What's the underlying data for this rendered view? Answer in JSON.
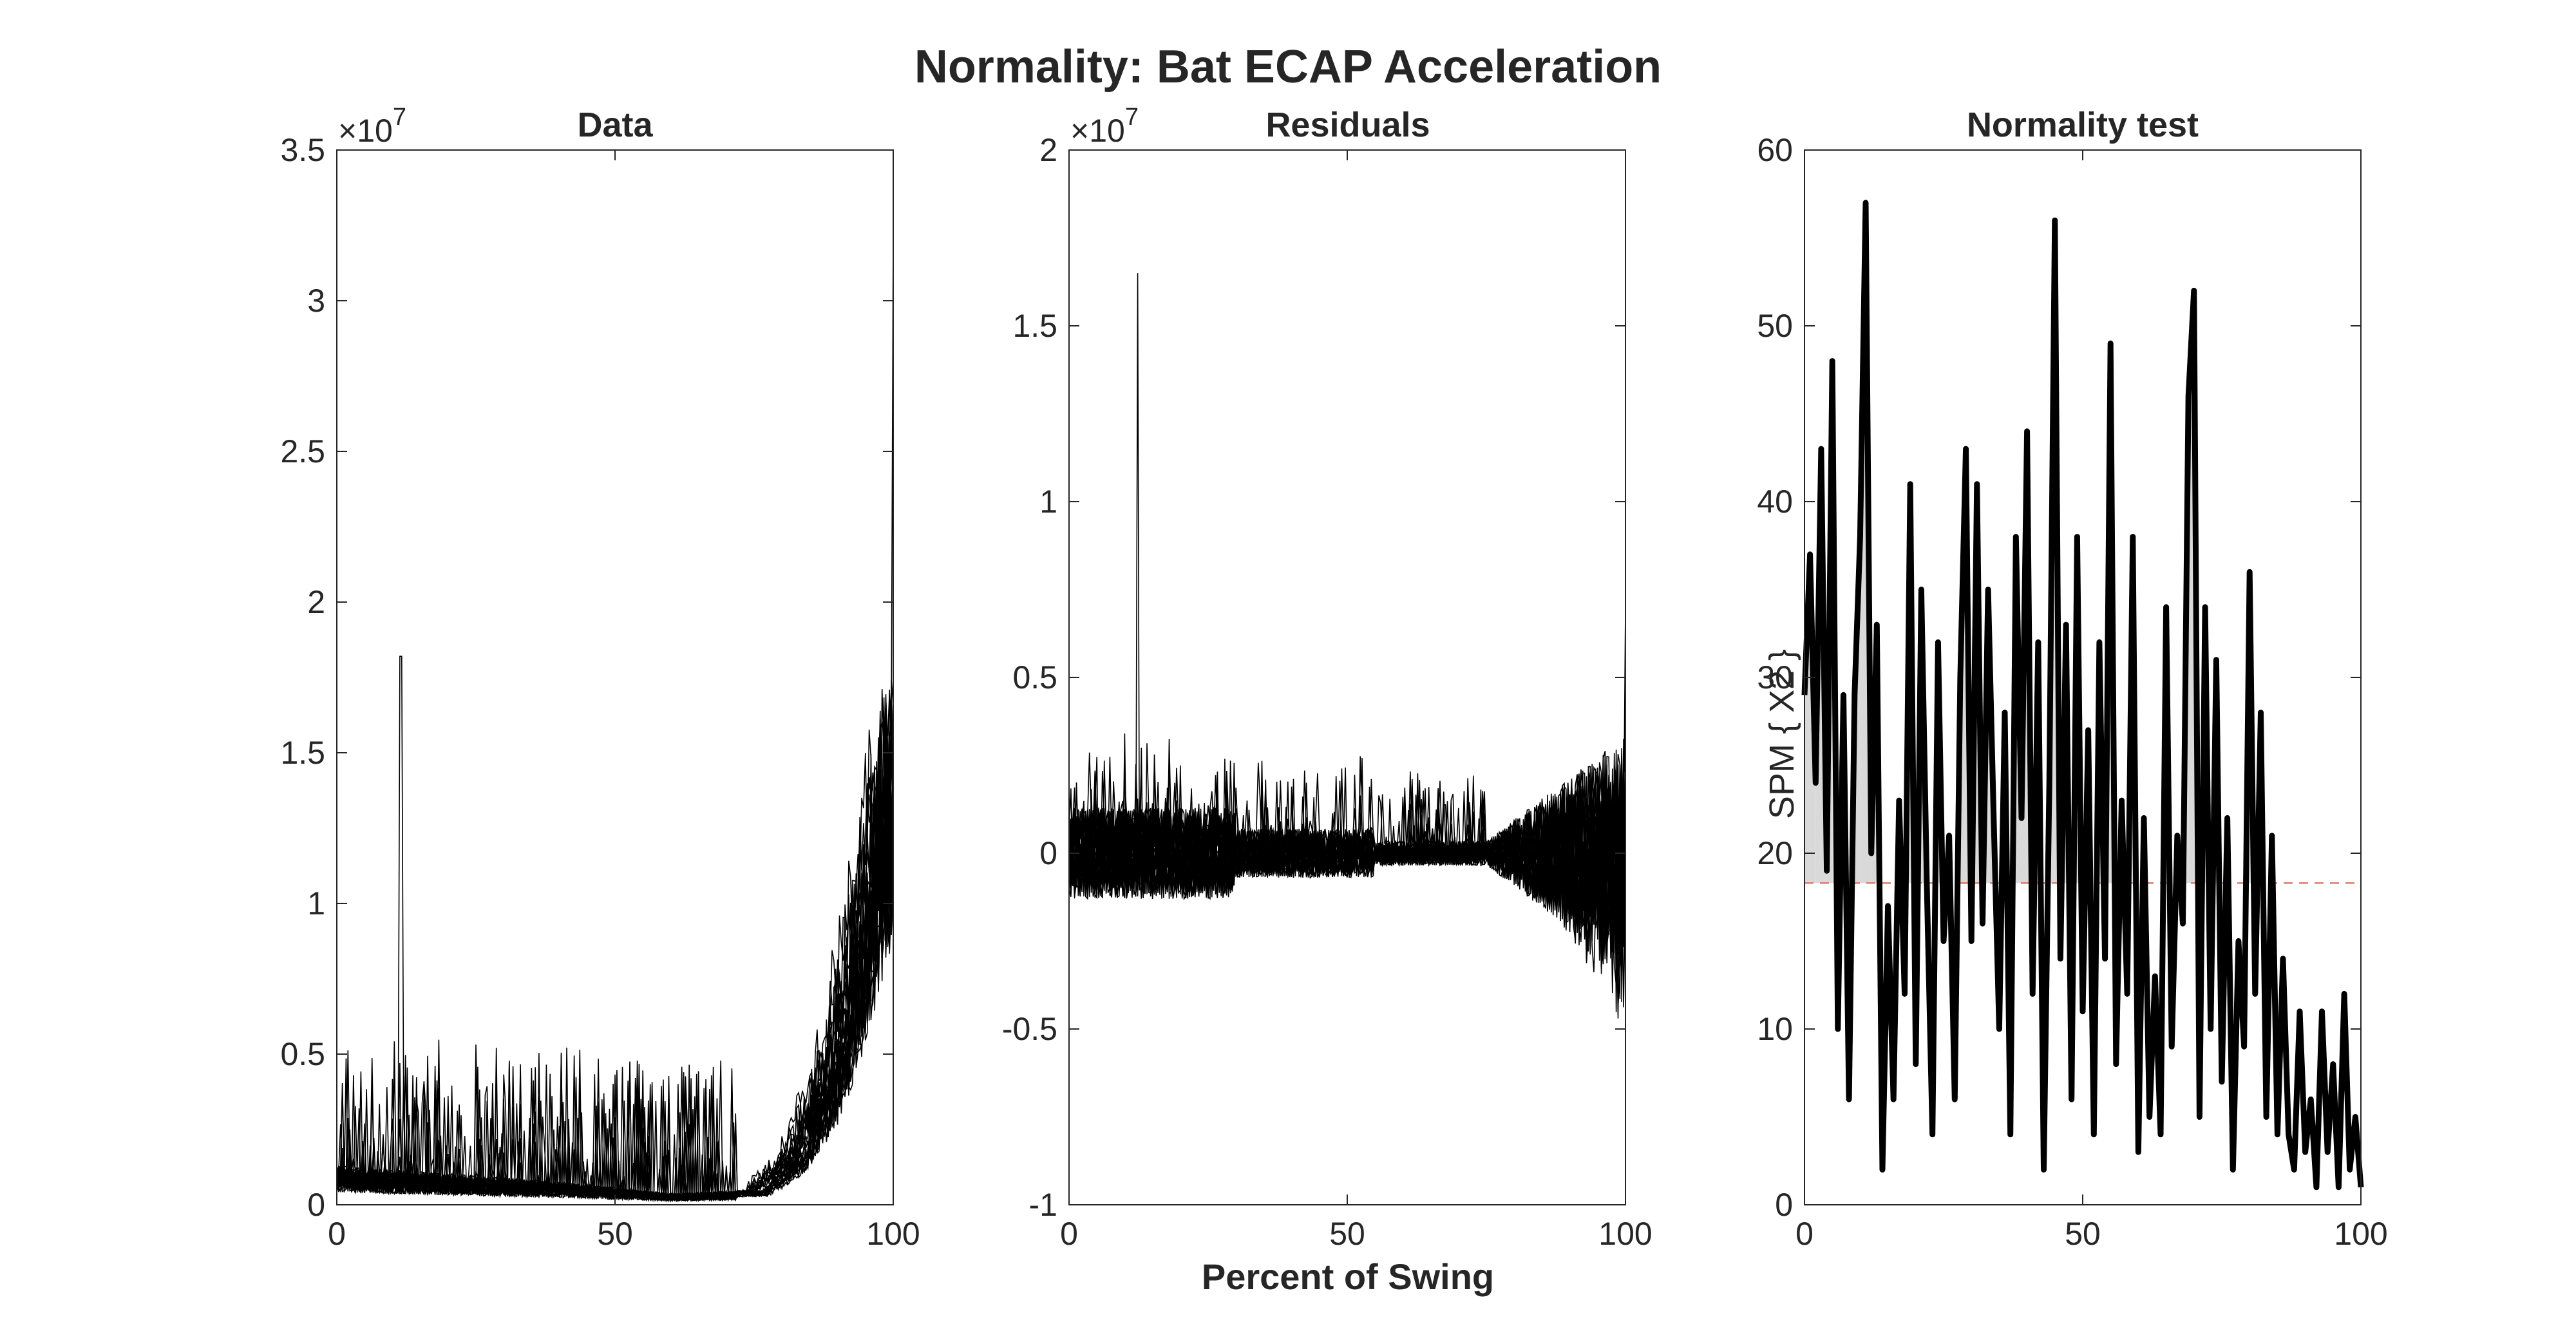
{
  "figure": {
    "title": "Normality: Bat ECAP Acceleration"
  },
  "chart_data": [
    {
      "type": "line",
      "title": "Data",
      "xlabel": "",
      "ylabel": "",
      "xlim": [
        0,
        100
      ],
      "ylim": [
        0,
        35000000
      ],
      "exponent_label": "×10",
      "exponent_power": "7",
      "xticks": [
        0,
        50,
        100
      ],
      "xtick_labels": [
        "0",
        "50",
        "100"
      ],
      "yticks": [
        0,
        5000000,
        10000000,
        15000000,
        20000000,
        25000000,
        30000000,
        35000000
      ],
      "ytick_labels": [
        "0",
        "0.5",
        "1",
        "1.5",
        "2",
        "2.5",
        "3",
        "3.5"
      ],
      "grid": false,
      "line_color": "#000000",
      "n_series": 25,
      "description_points": {
        "baseline_x": [
          0,
          20,
          40,
          60,
          75,
          82,
          88,
          92,
          96,
          100
        ],
        "baseline_y": [
          1000000,
          800000,
          600000,
          300000,
          400000,
          1500000,
          4000000,
          7000000,
          11000000,
          14000000
        ],
        "spike_x": 11.5,
        "spike_y": 18200000,
        "max_end_y": 32500000
      }
    },
    {
      "type": "line",
      "title": "Residuals",
      "xlabel": "Percent of Swing",
      "ylabel": "",
      "xlim": [
        0,
        100
      ],
      "ylim": [
        -10000000,
        20000000
      ],
      "exponent_label": "×10",
      "exponent_power": "7",
      "xticks": [
        0,
        50,
        100
      ],
      "xtick_labels": [
        "0",
        "50",
        "100"
      ],
      "yticks": [
        -10000000,
        -5000000,
        0,
        5000000,
        10000000,
        15000000,
        20000000
      ],
      "ytick_labels": [
        "-1",
        "-0.5",
        "0",
        "0.5",
        "1",
        "1.5",
        "2"
      ],
      "grid": false,
      "line_color": "#000000",
      "n_series": 25,
      "description_points": {
        "spike_x": 12.3,
        "spike_y": 16500000,
        "end_min_y": -4700000,
        "end_max_y": 7000000
      }
    },
    {
      "type": "line",
      "title": "Normality test",
      "xlabel": "",
      "ylabel": "SPM { X2 }",
      "xlim": [
        0,
        100
      ],
      "ylim": [
        0,
        60
      ],
      "xticks": [
        0,
        50,
        100
      ],
      "xtick_labels": [
        "0",
        "50",
        "100"
      ],
      "yticks": [
        0,
        10,
        20,
        30,
        40,
        50,
        60
      ],
      "ytick_labels": [
        "0",
        "10",
        "20",
        "30",
        "40",
        "50",
        "60"
      ],
      "grid": false,
      "line_color": "#000000",
      "threshold": 18.3,
      "threshold_color": "#d9806b",
      "fill_color": "#d9d9d9",
      "x": [
        0,
        1,
        2,
        3,
        4,
        5,
        6,
        7,
        8,
        9,
        10,
        11,
        12,
        13,
        14,
        15,
        16,
        17,
        18,
        19,
        20,
        21,
        22,
        23,
        24,
        25,
        26,
        27,
        28,
        29,
        30,
        31,
        32,
        33,
        34,
        35,
        36,
        37,
        38,
        39,
        40,
        41,
        42,
        43,
        44,
        45,
        46,
        47,
        48,
        49,
        50,
        51,
        52,
        53,
        54,
        55,
        56,
        57,
        58,
        59,
        60,
        61,
        62,
        63,
        64,
        65,
        66,
        67,
        68,
        69,
        70,
        71,
        72,
        73,
        74,
        75,
        76,
        77,
        78,
        79,
        80,
        81,
        82,
        83,
        84,
        85,
        86,
        87,
        88,
        89,
        90,
        91,
        92,
        93,
        94,
        95,
        96,
        97,
        98,
        99,
        100
      ],
      "y": [
        29,
        37,
        24,
        43,
        19,
        48,
        10,
        29,
        6,
        29,
        38,
        57,
        20,
        33,
        2,
        17,
        6,
        23,
        12,
        41,
        8,
        35,
        18,
        4,
        32,
        15,
        21,
        6,
        30,
        43,
        15,
        41,
        16,
        35,
        22,
        10,
        28,
        4,
        38,
        22,
        44,
        12,
        32,
        2,
        24,
        56,
        14,
        33,
        6,
        38,
        11,
        27,
        4,
        32,
        14,
        49,
        8,
        23,
        12,
        38,
        3,
        22,
        5,
        13,
        4,
        34,
        9,
        21,
        16,
        46,
        52,
        5,
        34,
        10,
        31,
        7,
        22,
        2,
        15,
        9,
        36,
        12,
        28,
        5,
        21,
        4,
        14,
        4,
        2,
        11,
        3,
        6,
        1,
        11,
        3,
        8,
        1,
        12,
        2,
        5,
        1
      ]
    }
  ]
}
